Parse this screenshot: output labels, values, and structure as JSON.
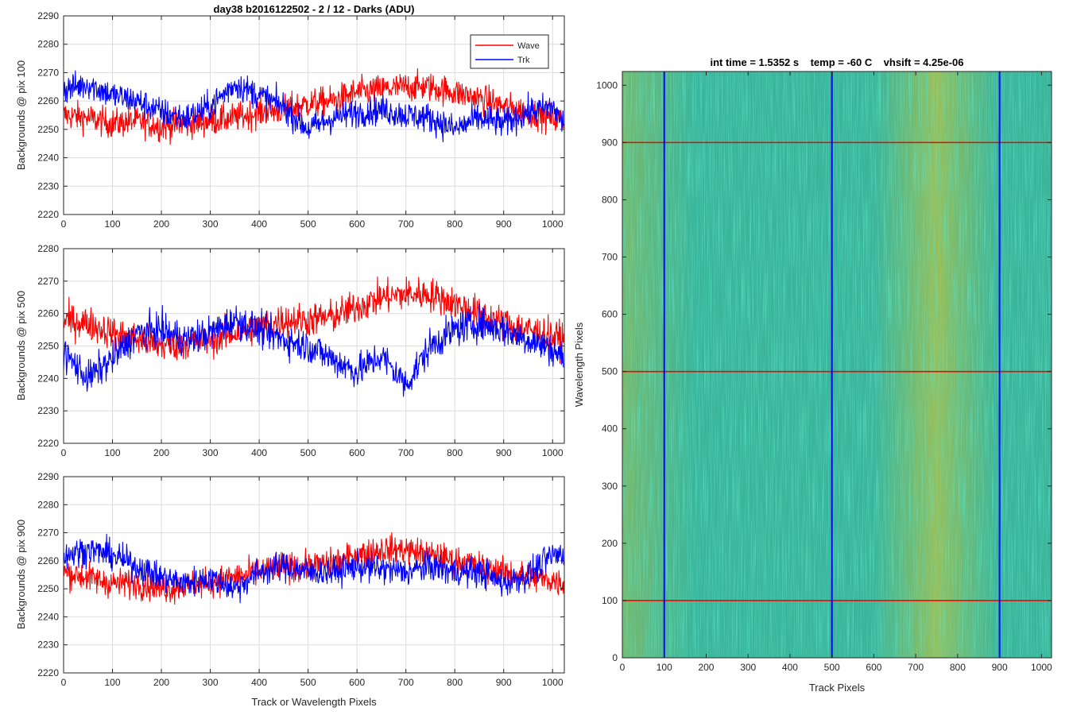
{
  "figure": {
    "left_xlabel": "Track or Wavelength Pixels",
    "legend": [
      {
        "label": "Wave",
        "color": "#ff0000"
      },
      {
        "label": "Trk",
        "color": "#0000ff"
      }
    ]
  },
  "chart_data": [
    {
      "type": "line",
      "title": "day38 b2016122502 - 2 / 12 - Darks (ADU)",
      "xlabel": "",
      "ylabel": "Backgrounds @ pix 100",
      "xlim": [
        0,
        1024
      ],
      "ylim": [
        2220,
        2290
      ],
      "xticks": [
        0,
        100,
        200,
        300,
        400,
        500,
        600,
        700,
        800,
        900,
        1000
      ],
      "yticks": [
        2220,
        2230,
        2240,
        2250,
        2260,
        2270,
        2280,
        2290
      ],
      "grid": true,
      "legend_position": "top-right",
      "series": [
        {
          "name": "Wave",
          "color": "#ff0000",
          "x": [
            0,
            50,
            100,
            150,
            200,
            250,
            300,
            350,
            400,
            450,
            500,
            550,
            600,
            650,
            700,
            750,
            800,
            850,
            900,
            950,
            1000,
            1023
          ],
          "y": [
            2255,
            2254,
            2252,
            2253,
            2251,
            2252,
            2253,
            2254,
            2256,
            2257,
            2259,
            2260,
            2263,
            2264,
            2265,
            2265,
            2263,
            2261,
            2258,
            2256,
            2254,
            2253
          ]
        },
        {
          "name": "Trk",
          "color": "#0000ff",
          "x": [
            0,
            50,
            100,
            150,
            200,
            250,
            300,
            350,
            400,
            450,
            500,
            550,
            600,
            650,
            700,
            750,
            800,
            850,
            900,
            950,
            1000,
            1023
          ],
          "y": [
            2264,
            2266,
            2262,
            2260,
            2256,
            2254,
            2258,
            2266,
            2262,
            2258,
            2250,
            2254,
            2256,
            2257,
            2255,
            2254,
            2250,
            2254,
            2252,
            2256,
            2258,
            2252
          ]
        }
      ]
    },
    {
      "type": "line",
      "title": "",
      "xlabel": "",
      "ylabel": "Backgrounds @ pix 500",
      "xlim": [
        0,
        1024
      ],
      "ylim": [
        2220,
        2280
      ],
      "xticks": [
        0,
        100,
        200,
        300,
        400,
        500,
        600,
        700,
        800,
        900,
        1000
      ],
      "yticks": [
        2220,
        2230,
        2240,
        2250,
        2260,
        2270,
        2280
      ],
      "grid": true,
      "series": [
        {
          "name": "Wave",
          "color": "#ff0000",
          "x": [
            0,
            50,
            100,
            150,
            200,
            250,
            300,
            350,
            400,
            450,
            500,
            550,
            600,
            650,
            700,
            750,
            800,
            850,
            900,
            950,
            1000,
            1023
          ],
          "y": [
            2258,
            2257,
            2254,
            2252,
            2250,
            2251,
            2252,
            2254,
            2256,
            2258,
            2258,
            2259,
            2262,
            2265,
            2266,
            2266,
            2263,
            2260,
            2257,
            2255,
            2253,
            2252
          ]
        },
        {
          "name": "Trk",
          "color": "#0000ff",
          "x": [
            0,
            50,
            100,
            150,
            200,
            250,
            300,
            350,
            400,
            450,
            500,
            550,
            600,
            650,
            700,
            750,
            800,
            850,
            900,
            950,
            1000,
            1023
          ],
          "y": [
            2248,
            2240,
            2246,
            2254,
            2255,
            2252,
            2254,
            2258,
            2255,
            2252,
            2250,
            2246,
            2242,
            2247,
            2238,
            2250,
            2255,
            2257,
            2255,
            2252,
            2249,
            2246
          ]
        }
      ]
    },
    {
      "type": "line",
      "title": "",
      "xlabel": "Track or Wavelength Pixels",
      "ylabel": "Backgrounds @ pix 900",
      "xlim": [
        0,
        1024
      ],
      "ylim": [
        2220,
        2290
      ],
      "xticks": [
        0,
        100,
        200,
        300,
        400,
        500,
        600,
        700,
        800,
        900,
        1000
      ],
      "yticks": [
        2220,
        2230,
        2240,
        2250,
        2260,
        2270,
        2280,
        2290
      ],
      "grid": true,
      "series": [
        {
          "name": "Wave",
          "color": "#ff0000",
          "x": [
            0,
            50,
            100,
            150,
            200,
            250,
            300,
            350,
            400,
            450,
            500,
            550,
            600,
            650,
            700,
            750,
            800,
            850,
            900,
            950,
            1000,
            1023
          ],
          "y": [
            2256,
            2254,
            2252,
            2252,
            2250,
            2251,
            2252,
            2254,
            2256,
            2258,
            2258,
            2259,
            2262,
            2264,
            2264,
            2262,
            2260,
            2258,
            2256,
            2254,
            2253,
            2252
          ]
        },
        {
          "name": "Trk",
          "color": "#0000ff",
          "x": [
            0,
            50,
            100,
            150,
            200,
            250,
            300,
            350,
            400,
            450,
            500,
            550,
            600,
            650,
            700,
            750,
            800,
            850,
            900,
            950,
            1000,
            1023
          ],
          "y": [
            2262,
            2264,
            2262,
            2258,
            2254,
            2252,
            2254,
            2250,
            2256,
            2258,
            2256,
            2256,
            2258,
            2257,
            2256,
            2258,
            2256,
            2256,
            2252,
            2255,
            2262,
            2262
          ]
        }
      ]
    },
    {
      "type": "heatmap",
      "title": "int time = 1.5352 s    temp = -60 C    vhsift = 4.25e-06",
      "xlabel": "Track Pixels",
      "ylabel": "Wavelength Pixels",
      "xlim": [
        0,
        1024
      ],
      "ylim": [
        0,
        1024
      ],
      "xticks": [
        0,
        100,
        200,
        300,
        400,
        500,
        600,
        700,
        800,
        900,
        1000
      ],
      "yticks": [
        0,
        100,
        200,
        300,
        400,
        500,
        600,
        700,
        800,
        900,
        1000
      ],
      "colormap": "parula",
      "vertical_markers": {
        "color": "#0000ff",
        "x": [
          100,
          500,
          900
        ]
      },
      "horizontal_markers": {
        "color": "#ff0000",
        "y": [
          100,
          500,
          900
        ]
      },
      "warm_band_x": [
        600,
        900
      ]
    }
  ]
}
